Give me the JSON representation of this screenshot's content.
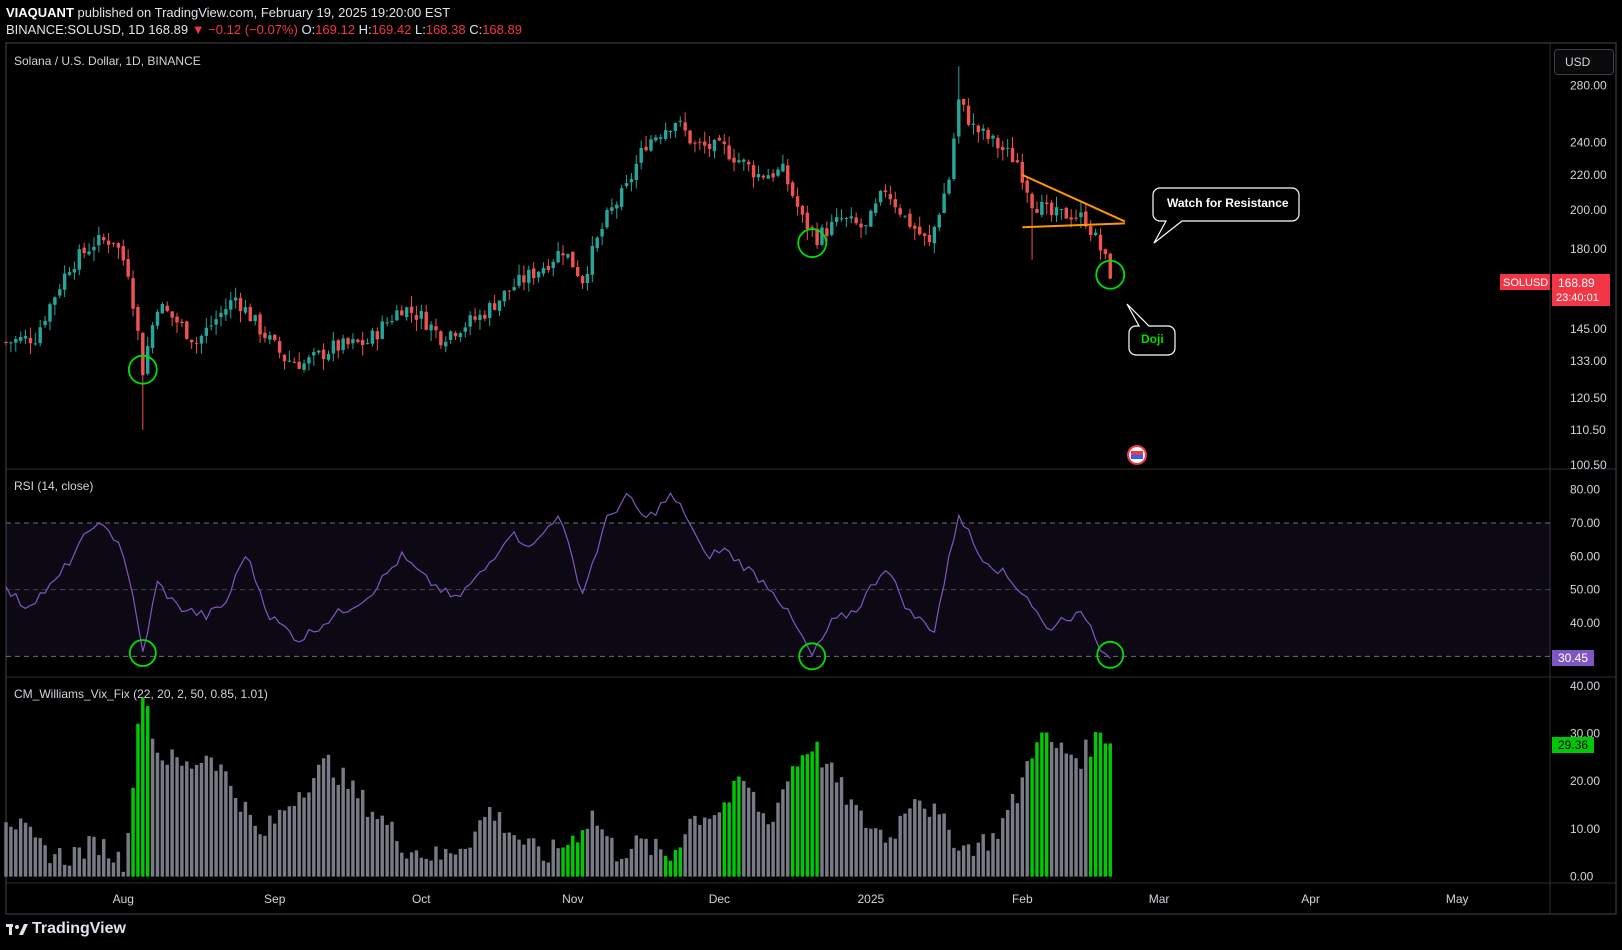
{
  "header": {
    "author": "VIAQUANT",
    "published": "published on TradingView.com, February 19, 2025 19:20:00 EST",
    "symbol_line": "BINANCE:SOLUSD, 1D",
    "last": "168.89",
    "change": "▼ −0.12 (−0.07%)",
    "o_label": "O:",
    "o": "169.12",
    "h_label": "H:",
    "h": "169.42",
    "l_label": "L:",
    "l": "168.38",
    "c_label": "C:",
    "c": "168.89"
  },
  "currency_button": "USD",
  "footer": {
    "brand": "TradingView"
  },
  "colors": {
    "up": "#26a69a",
    "down": "#ef5350",
    "rsi": "#7e57c2",
    "vix_gray": "#787b86",
    "vix_green": "#00c805",
    "annot": "#ff9800"
  },
  "chart_data": [
    {
      "type": "candlestick",
      "title": "Solana / U.S. Dollar, 1D, BINANCE",
      "price_ticks": [
        "280.00",
        "240.00",
        "220.00",
        "200.00",
        "180.00",
        "145.00",
        "133.00",
        "120.50",
        "110.50",
        "100.50"
      ],
      "price_scale": "log",
      "ylim": [
        100.5,
        300
      ],
      "x_labels": [
        "Aug",
        "Sep",
        "Oct",
        "Nov",
        "Dec",
        "2025",
        "Feb",
        "Mar",
        "Apr",
        "May"
      ],
      "x_range": [
        "2024-07-08",
        "2025-05-20"
      ],
      "close_path": [
        [
          "2024-07-08",
          140
        ],
        [
          "2024-07-14",
          142
        ],
        [
          "2024-07-21",
          172
        ],
        [
          "2024-07-26",
          183
        ],
        [
          "2024-07-30",
          185
        ],
        [
          "2024-08-02",
          170
        ],
        [
          "2024-08-05",
          130
        ],
        [
          "2024-08-08",
          155
        ],
        [
          "2024-08-12",
          148
        ],
        [
          "2024-08-16",
          140
        ],
        [
          "2024-08-24",
          158
        ],
        [
          "2024-08-29",
          145
        ],
        [
          "2024-09-03",
          134
        ],
        [
          "2024-09-07",
          132
        ],
        [
          "2024-09-13",
          138
        ],
        [
          "2024-09-20",
          140
        ],
        [
          "2024-09-27",
          154
        ],
        [
          "2024-10-01",
          150
        ],
        [
          "2024-10-05",
          142
        ],
        [
          "2024-10-13",
          150
        ],
        [
          "2024-10-20",
          163
        ],
        [
          "2024-10-26",
          172
        ],
        [
          "2024-10-30",
          180
        ],
        [
          "2024-11-03",
          166
        ],
        [
          "2024-11-08",
          196
        ],
        [
          "2024-11-12",
          212
        ],
        [
          "2024-11-16",
          240
        ],
        [
          "2024-11-22",
          255
        ],
        [
          "2024-11-26",
          238
        ],
        [
          "2024-12-02",
          236
        ],
        [
          "2024-12-09",
          220
        ],
        [
          "2024-12-14",
          222
        ],
        [
          "2024-12-18",
          195
        ],
        [
          "2024-12-21",
          186
        ],
        [
          "2024-12-26",
          195
        ],
        [
          "2024-12-31",
          190
        ],
        [
          "2025-01-04",
          212
        ],
        [
          "2025-01-08",
          196
        ],
        [
          "2025-01-13",
          182
        ],
        [
          "2025-01-17",
          218
        ],
        [
          "2025-01-19",
          268
        ],
        [
          "2025-01-22",
          250
        ],
        [
          "2025-01-27",
          238
        ],
        [
          "2025-01-31",
          228
        ],
        [
          "2025-02-03",
          205
        ],
        [
          "2025-02-07",
          197
        ],
        [
          "2025-02-11",
          198
        ],
        [
          "2025-02-14",
          195
        ],
        [
          "2025-02-17",
          180
        ],
        [
          "2025-02-19",
          168.89
        ]
      ],
      "low_wicks": [
        [
          "2024-08-05",
          110.5
        ],
        [
          "2025-02-03",
          175
        ]
      ],
      "high_wicks": [
        [
          "2025-01-19",
          295
        ]
      ],
      "last_price_label": "SOLUSD",
      "last_price": "168.89",
      "countdown": "23:40:01",
      "annotations": [
        {
          "text": "Watch for Resistance",
          "type": "callout"
        },
        {
          "text": "Doji",
          "type": "callout"
        },
        {
          "type": "descending-triangle",
          "upper": [
            [
              "2025-02-01",
              220
            ],
            [
              "2025-02-22",
              194
            ]
          ],
          "lower": [
            [
              "2025-02-01",
              191
            ],
            [
              "2025-02-22",
              193
            ]
          ]
        },
        {
          "type": "circle",
          "at": [
            "2024-08-05",
            130
          ]
        },
        {
          "type": "circle",
          "at": [
            "2024-12-20",
            183
          ]
        },
        {
          "type": "circle",
          "at": [
            "2025-02-19",
            168
          ]
        }
      ]
    },
    {
      "type": "line",
      "title": "RSI (14, close)",
      "y_ticks": [
        "80.00",
        "70.00",
        "60.00",
        "50.00",
        "40.00"
      ],
      "ylim": [
        25,
        85
      ],
      "bands": [
        30,
        50,
        70
      ],
      "current_label": "30.45",
      "series": [
        {
          "values_path": [
            [
              "2024-07-08",
              50
            ],
            [
              "2024-07-12",
              45
            ],
            [
              "2024-07-18",
              52
            ],
            [
              "2024-07-23",
              63
            ],
            [
              "2024-07-26",
              70
            ],
            [
              "2024-07-31",
              65
            ],
            [
              "2024-08-02",
              55
            ],
            [
              "2024-08-05",
              31
            ],
            [
              "2024-08-08",
              52
            ],
            [
              "2024-08-12",
              45
            ],
            [
              "2024-08-18",
              42
            ],
            [
              "2024-08-22",
              46
            ],
            [
              "2024-08-26",
              61
            ],
            [
              "2024-08-31",
              42
            ],
            [
              "2024-09-06",
              35
            ],
            [
              "2024-09-13",
              42
            ],
            [
              "2024-09-20",
              48
            ],
            [
              "2024-09-27",
              60
            ],
            [
              "2024-10-02",
              53
            ],
            [
              "2024-10-08",
              47
            ],
            [
              "2024-10-14",
              56
            ],
            [
              "2024-10-19",
              67
            ],
            [
              "2024-10-24",
              63
            ],
            [
              "2024-10-29",
              73
            ],
            [
              "2024-11-03",
              49
            ],
            [
              "2024-11-08",
              71
            ],
            [
              "2024-11-12",
              78
            ],
            [
              "2024-11-16",
              71
            ],
            [
              "2024-11-21",
              78
            ],
            [
              "2024-11-24",
              73
            ],
            [
              "2024-11-28",
              60
            ],
            [
              "2024-12-02",
              62
            ],
            [
              "2024-12-07",
              56
            ],
            [
              "2024-12-12",
              50
            ],
            [
              "2024-12-17",
              38
            ],
            [
              "2024-12-20",
              30
            ],
            [
              "2024-12-24",
              40
            ],
            [
              "2024-12-29",
              44
            ],
            [
              "2025-01-04",
              57
            ],
            [
              "2025-01-09",
              43
            ],
            [
              "2025-01-14",
              38
            ],
            [
              "2025-01-19",
              73
            ],
            [
              "2025-01-23",
              61
            ],
            [
              "2025-01-28",
              55
            ],
            [
              "2025-02-02",
              48
            ],
            [
              "2025-02-06",
              38
            ],
            [
              "2025-02-10",
              42
            ],
            [
              "2025-02-14",
              42
            ],
            [
              "2025-02-17",
              33
            ],
            [
              "2025-02-19",
              30.45
            ]
          ]
        }
      ]
    },
    {
      "type": "bar",
      "title": "CM_Williams_Vix_Fix (22, 20, 2, 50, 0.85, 1.01)",
      "y_ticks": [
        "40.00",
        "30.00",
        "20.00",
        "10.00",
        "0.00"
      ],
      "ylim": [
        -0.5,
        41
      ],
      "current_label": "29.36",
      "values_path": [
        [
          "2024-07-08",
          13
        ],
        [
          "2024-07-15",
          6
        ],
        [
          "2024-07-20",
          4
        ],
        [
          "2024-07-27",
          7
        ],
        [
          "2024-08-01",
          3
        ],
        [
          "2024-08-03",
          20
        ],
        [
          "2024-08-05",
          40
        ],
        [
          "2024-08-08",
          26
        ],
        [
          "2024-08-14",
          23
        ],
        [
          "2024-08-19",
          26
        ],
        [
          "2024-08-25",
          16
        ],
        [
          "2024-08-29",
          8
        ],
        [
          "2024-09-06",
          18
        ],
        [
          "2024-09-12",
          24
        ],
        [
          "2024-09-17",
          18
        ],
        [
          "2024-09-23",
          12
        ],
        [
          "2024-09-28",
          6
        ],
        [
          "2024-10-05",
          4
        ],
        [
          "2024-10-11",
          8
        ],
        [
          "2024-10-15",
          14
        ],
        [
          "2024-10-21",
          8
        ],
        [
          "2024-10-26",
          4
        ],
        [
          "2024-11-01",
          8
        ],
        [
          "2024-11-05",
          13
        ],
        [
          "2024-11-10",
          5
        ],
        [
          "2024-11-15",
          7
        ],
        [
          "2024-11-21",
          4
        ],
        [
          "2024-11-25",
          12
        ],
        [
          "2024-12-01",
          14
        ],
        [
          "2024-12-06",
          20
        ],
        [
          "2024-12-11",
          11
        ],
        [
          "2024-12-16",
          23
        ],
        [
          "2024-12-20",
          28
        ],
        [
          "2024-12-25",
          20
        ],
        [
          "2024-12-30",
          12
        ],
        [
          "2025-01-05",
          8
        ],
        [
          "2025-01-10",
          18
        ],
        [
          "2025-01-15",
          12
        ],
        [
          "2025-01-20",
          6
        ],
        [
          "2025-01-26",
          8
        ],
        [
          "2025-01-31",
          17
        ],
        [
          "2025-02-04",
          30
        ],
        [
          "2025-02-08",
          27
        ],
        [
          "2025-02-13",
          25
        ],
        [
          "2025-02-17",
          30
        ],
        [
          "2025-02-19",
          29.36
        ]
      ],
      "green_ranges": [
        [
          "2024-08-03",
          "2024-08-06"
        ],
        [
          "2024-10-30",
          "2024-11-03"
        ],
        [
          "2024-11-20",
          "2024-11-23"
        ],
        [
          "2024-12-02",
          "2024-12-05"
        ],
        [
          "2024-12-16",
          "2024-12-21"
        ],
        [
          "2025-02-03",
          "2025-02-06"
        ],
        [
          "2025-02-15",
          "2025-02-19"
        ]
      ]
    }
  ]
}
